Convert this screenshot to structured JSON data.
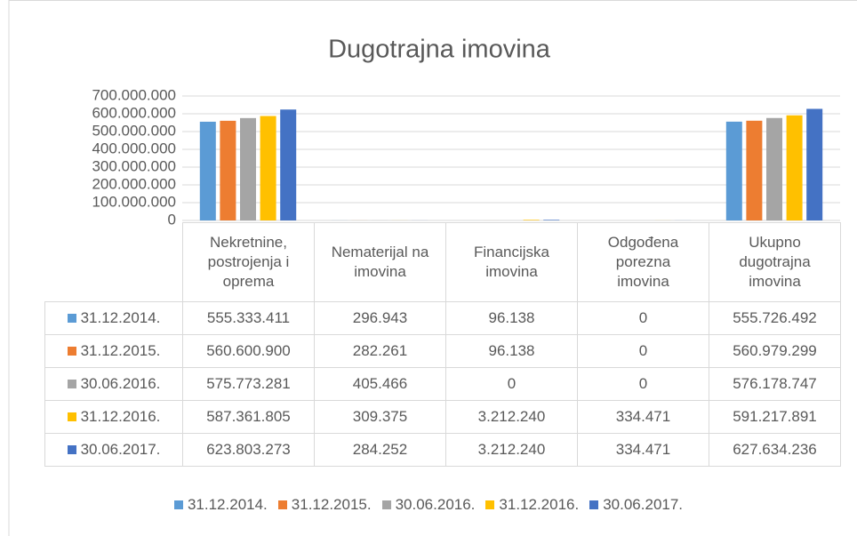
{
  "chart_data": {
    "type": "bar",
    "title": "Dugotrajna imovina",
    "categories": [
      "Nekretnine, postrojenja i oprema",
      "Nematerijal na imovina",
      "Financijska imovina",
      "Odgođena porezna imovina",
      "Ukupno dugotrajna imovina"
    ],
    "series": [
      {
        "name": "31.12.2014.",
        "color": "#5b9bd5",
        "values": [
          555333411,
          296943,
          96138,
          0,
          555726492
        ],
        "value_labels": [
          "555.333.411",
          "296.943",
          "96.138",
          "0",
          "555.726.492"
        ]
      },
      {
        "name": "31.12.2015.",
        "color": "#ed7d31",
        "values": [
          560600900,
          282261,
          96138,
          0,
          560979299
        ],
        "value_labels": [
          "560.600.900",
          "282.261",
          "96.138",
          "0",
          "560.979.299"
        ]
      },
      {
        "name": "30.06.2016.",
        "color": "#a5a5a5",
        "values": [
          575773281,
          405466,
          0,
          0,
          576178747
        ],
        "value_labels": [
          "575.773.281",
          "405.466",
          "0",
          "0",
          "576.178.747"
        ]
      },
      {
        "name": "31.12.2016.",
        "color": "#ffc000",
        "values": [
          587361805,
          309375,
          3212240,
          334471,
          591217891
        ],
        "value_labels": [
          "587.361.805",
          "309.375",
          "3.212.240",
          "334.471",
          "591.217.891"
        ]
      },
      {
        "name": "30.06.2017.",
        "color": "#4472c4",
        "values": [
          623803273,
          284252,
          3212240,
          334471,
          627634236
        ],
        "value_labels": [
          "623.803.273",
          "284.252",
          "3.212.240",
          "334.471",
          "627.634.236"
        ]
      }
    ],
    "ylim": [
      0,
      700000000
    ],
    "yticks": [
      0,
      {
        "value": 100000000,
        "label": "100.000.000"
      },
      {
        "value": 200000000,
        "label": "200.000.000"
      },
      {
        "value": 300000000,
        "label": "300.000.000"
      },
      {
        "value": 400000000,
        "label": "400.000.000"
      },
      {
        "value": 500000000,
        "label": "500.000.000"
      },
      {
        "value": 600000000,
        "label": "600.000.000"
      },
      {
        "value": 700000000,
        "label": "700.000.000"
      }
    ],
    "grid": true
  }
}
